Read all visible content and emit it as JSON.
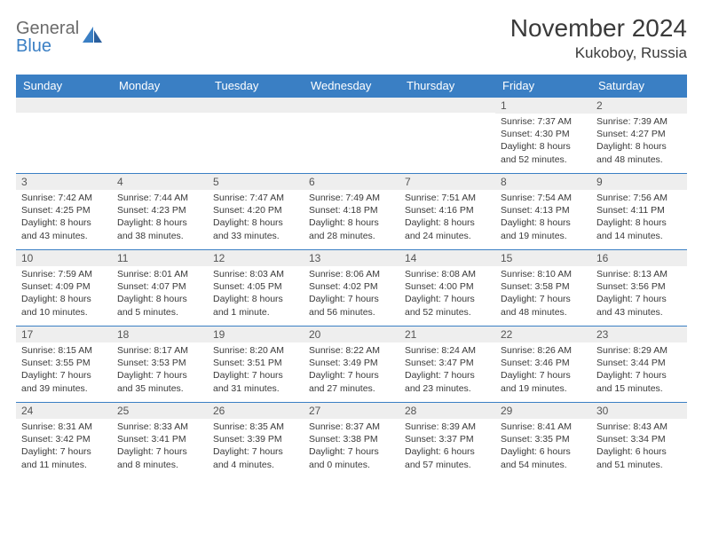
{
  "brand": {
    "word1": "General",
    "word2": "Blue"
  },
  "header": {
    "title": "November 2024",
    "location": "Kukoboy, Russia"
  },
  "style": {
    "accent": "#3a7fc4",
    "header_bg": "#3a7fc4",
    "header_text": "#ffffff",
    "daynum_bg": "#eeeeee",
    "border": "#3a7fc4",
    "body_text": "#3a3a3a",
    "font_day": 10.5,
    "font_title": 28
  },
  "weekdays": [
    "Sunday",
    "Monday",
    "Tuesday",
    "Wednesday",
    "Thursday",
    "Friday",
    "Saturday"
  ],
  "weeks": [
    [
      {
        "n": "",
        "lines": []
      },
      {
        "n": "",
        "lines": []
      },
      {
        "n": "",
        "lines": []
      },
      {
        "n": "",
        "lines": []
      },
      {
        "n": "",
        "lines": []
      },
      {
        "n": "1",
        "lines": [
          "Sunrise: 7:37 AM",
          "Sunset: 4:30 PM",
          "Daylight: 8 hours",
          "and 52 minutes."
        ]
      },
      {
        "n": "2",
        "lines": [
          "Sunrise: 7:39 AM",
          "Sunset: 4:27 PM",
          "Daylight: 8 hours",
          "and 48 minutes."
        ]
      }
    ],
    [
      {
        "n": "3",
        "lines": [
          "Sunrise: 7:42 AM",
          "Sunset: 4:25 PM",
          "Daylight: 8 hours",
          "and 43 minutes."
        ]
      },
      {
        "n": "4",
        "lines": [
          "Sunrise: 7:44 AM",
          "Sunset: 4:23 PM",
          "Daylight: 8 hours",
          "and 38 minutes."
        ]
      },
      {
        "n": "5",
        "lines": [
          "Sunrise: 7:47 AM",
          "Sunset: 4:20 PM",
          "Daylight: 8 hours",
          "and 33 minutes."
        ]
      },
      {
        "n": "6",
        "lines": [
          "Sunrise: 7:49 AM",
          "Sunset: 4:18 PM",
          "Daylight: 8 hours",
          "and 28 minutes."
        ]
      },
      {
        "n": "7",
        "lines": [
          "Sunrise: 7:51 AM",
          "Sunset: 4:16 PM",
          "Daylight: 8 hours",
          "and 24 minutes."
        ]
      },
      {
        "n": "8",
        "lines": [
          "Sunrise: 7:54 AM",
          "Sunset: 4:13 PM",
          "Daylight: 8 hours",
          "and 19 minutes."
        ]
      },
      {
        "n": "9",
        "lines": [
          "Sunrise: 7:56 AM",
          "Sunset: 4:11 PM",
          "Daylight: 8 hours",
          "and 14 minutes."
        ]
      }
    ],
    [
      {
        "n": "10",
        "lines": [
          "Sunrise: 7:59 AM",
          "Sunset: 4:09 PM",
          "Daylight: 8 hours",
          "and 10 minutes."
        ]
      },
      {
        "n": "11",
        "lines": [
          "Sunrise: 8:01 AM",
          "Sunset: 4:07 PM",
          "Daylight: 8 hours",
          "and 5 minutes."
        ]
      },
      {
        "n": "12",
        "lines": [
          "Sunrise: 8:03 AM",
          "Sunset: 4:05 PM",
          "Daylight: 8 hours",
          "and 1 minute."
        ]
      },
      {
        "n": "13",
        "lines": [
          "Sunrise: 8:06 AM",
          "Sunset: 4:02 PM",
          "Daylight: 7 hours",
          "and 56 minutes."
        ]
      },
      {
        "n": "14",
        "lines": [
          "Sunrise: 8:08 AM",
          "Sunset: 4:00 PM",
          "Daylight: 7 hours",
          "and 52 minutes."
        ]
      },
      {
        "n": "15",
        "lines": [
          "Sunrise: 8:10 AM",
          "Sunset: 3:58 PM",
          "Daylight: 7 hours",
          "and 48 minutes."
        ]
      },
      {
        "n": "16",
        "lines": [
          "Sunrise: 8:13 AM",
          "Sunset: 3:56 PM",
          "Daylight: 7 hours",
          "and 43 minutes."
        ]
      }
    ],
    [
      {
        "n": "17",
        "lines": [
          "Sunrise: 8:15 AM",
          "Sunset: 3:55 PM",
          "Daylight: 7 hours",
          "and 39 minutes."
        ]
      },
      {
        "n": "18",
        "lines": [
          "Sunrise: 8:17 AM",
          "Sunset: 3:53 PM",
          "Daylight: 7 hours",
          "and 35 minutes."
        ]
      },
      {
        "n": "19",
        "lines": [
          "Sunrise: 8:20 AM",
          "Sunset: 3:51 PM",
          "Daylight: 7 hours",
          "and 31 minutes."
        ]
      },
      {
        "n": "20",
        "lines": [
          "Sunrise: 8:22 AM",
          "Sunset: 3:49 PM",
          "Daylight: 7 hours",
          "and 27 minutes."
        ]
      },
      {
        "n": "21",
        "lines": [
          "Sunrise: 8:24 AM",
          "Sunset: 3:47 PM",
          "Daylight: 7 hours",
          "and 23 minutes."
        ]
      },
      {
        "n": "22",
        "lines": [
          "Sunrise: 8:26 AM",
          "Sunset: 3:46 PM",
          "Daylight: 7 hours",
          "and 19 minutes."
        ]
      },
      {
        "n": "23",
        "lines": [
          "Sunrise: 8:29 AM",
          "Sunset: 3:44 PM",
          "Daylight: 7 hours",
          "and 15 minutes."
        ]
      }
    ],
    [
      {
        "n": "24",
        "lines": [
          "Sunrise: 8:31 AM",
          "Sunset: 3:42 PM",
          "Daylight: 7 hours",
          "and 11 minutes."
        ]
      },
      {
        "n": "25",
        "lines": [
          "Sunrise: 8:33 AM",
          "Sunset: 3:41 PM",
          "Daylight: 7 hours",
          "and 8 minutes."
        ]
      },
      {
        "n": "26",
        "lines": [
          "Sunrise: 8:35 AM",
          "Sunset: 3:39 PM",
          "Daylight: 7 hours",
          "and 4 minutes."
        ]
      },
      {
        "n": "27",
        "lines": [
          "Sunrise: 8:37 AM",
          "Sunset: 3:38 PM",
          "Daylight: 7 hours",
          "and 0 minutes."
        ]
      },
      {
        "n": "28",
        "lines": [
          "Sunrise: 8:39 AM",
          "Sunset: 3:37 PM",
          "Daylight: 6 hours",
          "and 57 minutes."
        ]
      },
      {
        "n": "29",
        "lines": [
          "Sunrise: 8:41 AM",
          "Sunset: 3:35 PM",
          "Daylight: 6 hours",
          "and 54 minutes."
        ]
      },
      {
        "n": "30",
        "lines": [
          "Sunrise: 8:43 AM",
          "Sunset: 3:34 PM",
          "Daylight: 6 hours",
          "and 51 minutes."
        ]
      }
    ]
  ]
}
